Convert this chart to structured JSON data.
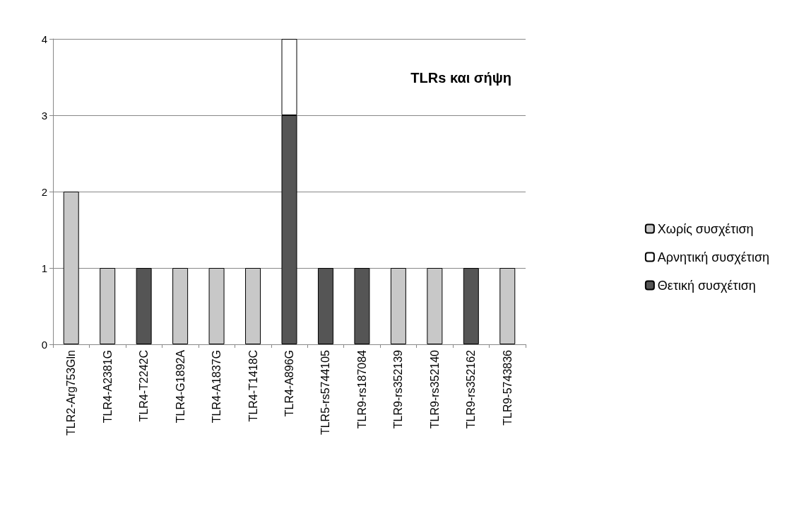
{
  "chart_data": {
    "type": "bar",
    "title": "TLRs και σήψη",
    "stacked": true,
    "categories": [
      "TLR2-Arg753Gln",
      "TLR4-A2381G",
      "TLR4-T2242C",
      "TLR4-G1892A",
      "TLR4-A1837G",
      "TLR4-T1418C",
      "TLR4-A896G",
      "TLR5-rs5744105",
      "TLR9-rs187084",
      "TLR9-rs352139",
      "TLR9-rs352140",
      "TLR9-rs352162",
      "TLR9-5743836"
    ],
    "series": [
      {
        "name": "Θετική συσχέτιση",
        "color": "#555555",
        "values": [
          null,
          null,
          1,
          null,
          null,
          null,
          3,
          1,
          1,
          null,
          null,
          1,
          null
        ]
      },
      {
        "name": "Αρνητική συσχέτιση",
        "color": "#ffffff",
        "values": [
          null,
          null,
          null,
          null,
          null,
          null,
          1,
          null,
          null,
          null,
          null,
          null,
          null
        ]
      },
      {
        "name": "Χωρίς συσχέτιση",
        "color": "#c8c8c8",
        "values": [
          2,
          1,
          null,
          1,
          1,
          1,
          null,
          null,
          null,
          1,
          1,
          null,
          1
        ]
      }
    ],
    "ylim": [
      0,
      4
    ],
    "yticks": [
      0,
      1,
      2,
      3,
      4
    ],
    "grid": "y",
    "legend": "right"
  }
}
